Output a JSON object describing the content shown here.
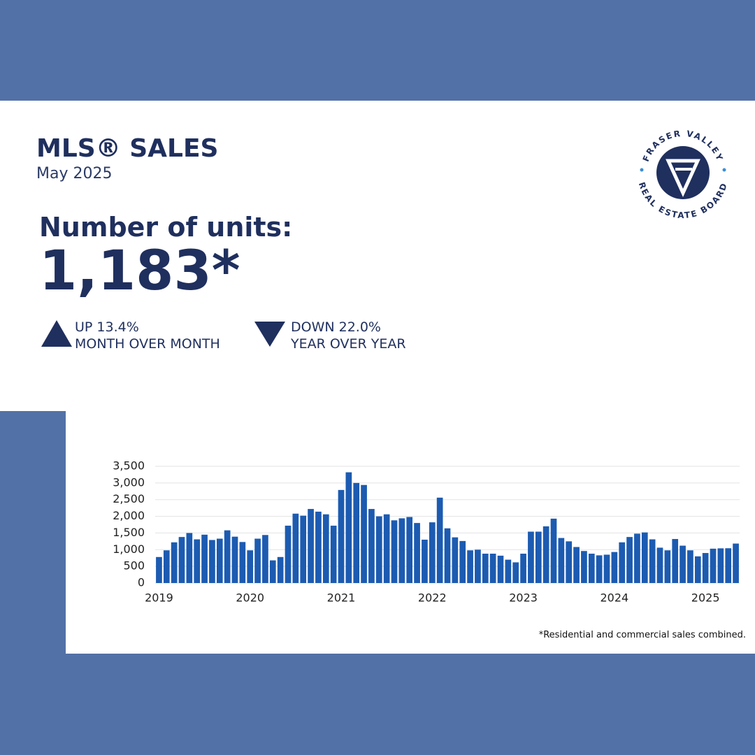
{
  "header": {
    "title": "MLS® SALES",
    "subtitle": "May 2025"
  },
  "headline": {
    "label": "Number of units:",
    "value": "1,183*"
  },
  "stats": [
    {
      "line1": "UP 13.4%",
      "line2": "MONTH OVER MONTH"
    },
    {
      "line1": "DOWN 22.0%",
      "line2": "YEAR OVER YEAR"
    }
  ],
  "logo": {
    "top": "FRASER VALLEY",
    "bottom": "REAL ESTATE BOARD"
  },
  "footnote": "*Residential and commercial sales combined.",
  "chart_data": {
    "type": "bar",
    "color": "#1c5bb1",
    "grid": true,
    "categories": [
      "2019",
      null,
      null,
      null,
      null,
      null,
      null,
      null,
      null,
      null,
      null,
      null,
      "2020",
      null,
      null,
      null,
      null,
      null,
      null,
      null,
      null,
      null,
      null,
      null,
      "2021",
      null,
      null,
      null,
      null,
      null,
      null,
      null,
      null,
      null,
      null,
      null,
      "2022",
      null,
      null,
      null,
      null,
      null,
      null,
      null,
      null,
      null,
      null,
      null,
      "2023",
      null,
      null,
      null,
      null,
      null,
      null,
      null,
      null,
      null,
      null,
      null,
      "2024",
      null,
      null,
      null,
      null,
      null,
      null,
      null,
      null,
      null,
      null,
      null,
      "2025",
      null,
      null,
      null,
      null
    ],
    "values": [
      780,
      980,
      1220,
      1380,
      1500,
      1310,
      1450,
      1290,
      1330,
      1580,
      1390,
      1230,
      980,
      1330,
      1440,
      680,
      780,
      1720,
      2080,
      2020,
      2220,
      2140,
      2060,
      1720,
      2790,
      3320,
      3000,
      2940,
      2220,
      2000,
      2060,
      1880,
      1940,
      1980,
      1800,
      1300,
      1820,
      2560,
      1640,
      1370,
      1260,
      980,
      1000,
      880,
      880,
      820,
      700,
      620,
      880,
      1540,
      1540,
      1700,
      1930,
      1350,
      1250,
      1080,
      960,
      880,
      830,
      850,
      930,
      1220,
      1380,
      1480,
      1517,
      1310,
      1060,
      980,
      1320,
      1120,
      980,
      800,
      900,
      1030,
      1040,
      1043,
      1183
    ],
    "ylim": [
      0,
      3500
    ],
    "yticks": [
      0,
      500,
      {
        "value": 1000,
        "label": "1,000"
      },
      {
        "value": 1500,
        "label": "1,500"
      },
      {
        "value": 2000,
        "label": "2,000"
      },
      {
        "value": 2500,
        "label": "2,500"
      },
      {
        "value": 3000,
        "label": "3,000"
      },
      {
        "value": 3500,
        "label": "3,500"
      }
    ]
  }
}
